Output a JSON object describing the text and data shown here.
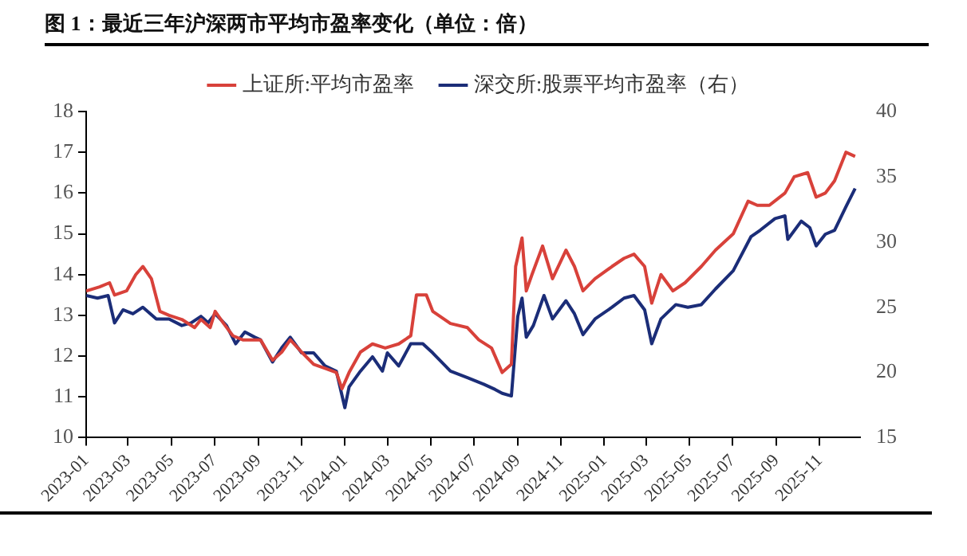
{
  "chart_data": {
    "type": "line",
    "title": "图 1：最近三年沪深两市平均市盈率变化（单位：倍）",
    "legend": "top",
    "xlim": [
      "2023-01-01",
      "2025-12-28"
    ],
    "xticks": [
      "2023-01",
      "2023-03",
      "2023-05",
      "2023-07",
      "2023-09",
      "2023-11",
      "2024-01",
      "2024-03",
      "2024-05",
      "2024-07",
      "2024-09",
      "2024-11",
      "2025-01",
      "2025-03",
      "2025-05",
      "2025-07",
      "2025-09",
      "2025-11"
    ],
    "ylim": [
      10,
      18
    ],
    "yticks": [
      10,
      11,
      12,
      13,
      14,
      15,
      16,
      17,
      18
    ],
    "y2lim": [
      15,
      40
    ],
    "y2ticks": [
      15,
      20,
      25,
      30,
      35,
      40
    ],
    "series": [
      {
        "name": "上证所:平均市盈率",
        "color": "#d8413a",
        "x": [
          "2023-01-01",
          "2023-01-20",
          "2023-02-03",
          "2023-02-10",
          "2023-02-27",
          "2023-03-12",
          "2023-03-22",
          "2023-04-03",
          "2023-04-15",
          "2023-04-28",
          "2023-05-16",
          "2023-06-03",
          "2023-06-12",
          "2023-06-25",
          "2023-07-02",
          "2023-07-14",
          "2023-07-27",
          "2023-08-10",
          "2023-08-27",
          "2023-09-04",
          "2023-09-21",
          "2023-10-04",
          "2023-10-16",
          "2023-11-01",
          "2023-11-18",
          "2023-12-04",
          "2023-12-20",
          "2023-12-28",
          "2024-01-07",
          "2024-01-23",
          "2024-02-09",
          "2024-02-27",
          "2024-03-17",
          "2024-04-03",
          "2024-04-11",
          "2024-04-25",
          "2024-05-04",
          "2024-05-29",
          "2024-06-22",
          "2024-07-08",
          "2024-07-26",
          "2024-08-10",
          "2024-08-23",
          "2024-08-29",
          "2024-09-07",
          "2024-09-13",
          "2024-09-21",
          "2024-10-06",
          "2024-10-20",
          "2024-11-08",
          "2024-11-20",
          "2024-12-02",
          "2024-12-19",
          "2025-01-12",
          "2025-01-29",
          "2025-02-12",
          "2025-02-27",
          "2025-03-09",
          "2025-03-22",
          "2025-04-08",
          "2025-04-25",
          "2025-05-18",
          "2025-06-07",
          "2025-07-02",
          "2025-07-23",
          "2025-08-05",
          "2025-08-22",
          "2025-09-13",
          "2025-09-26",
          "2025-10-15",
          "2025-10-27",
          "2025-11-09",
          "2025-11-22",
          "2025-12-08",
          "2025-12-21"
        ],
        "values": [
          13.6,
          13.7,
          13.8,
          13.5,
          13.6,
          14.0,
          14.2,
          13.9,
          13.1,
          13.0,
          12.9,
          12.7,
          12.9,
          12.7,
          13.1,
          12.8,
          12.5,
          12.4,
          12.4,
          12.4,
          11.9,
          12.1,
          12.4,
          12.1,
          11.8,
          11.7,
          11.6,
          11.2,
          11.6,
          12.1,
          12.3,
          12.2,
          12.3,
          12.5,
          13.5,
          13.5,
          13.1,
          12.8,
          12.7,
          12.4,
          12.2,
          11.6,
          11.8,
          14.2,
          14.9,
          13.6,
          14.0,
          14.7,
          13.9,
          14.6,
          14.2,
          13.6,
          13.9,
          14.2,
          14.4,
          14.5,
          14.2,
          13.3,
          14.0,
          13.6,
          13.8,
          14.2,
          14.6,
          15.0,
          15.8,
          15.7,
          15.7,
          16.0,
          16.4,
          16.5,
          15.9,
          16.0,
          16.3,
          17.0,
          16.9
        ]
      },
      {
        "name": "深交所:股票平均市盈率（右）",
        "color": "#1b2d78",
        "axis": "y2",
        "x": [
          "2023-01-01",
          "2023-01-17",
          "2023-02-01",
          "2023-02-10",
          "2023-02-22",
          "2023-03-08",
          "2023-03-22",
          "2023-04-10",
          "2023-04-28",
          "2023-05-16",
          "2023-05-29",
          "2023-06-12",
          "2023-06-22",
          "2023-07-02",
          "2023-07-18",
          "2023-07-31",
          "2023-08-13",
          "2023-08-27",
          "2023-09-04",
          "2023-09-21",
          "2023-10-04",
          "2023-10-16",
          "2023-11-01",
          "2023-11-18",
          "2023-12-04",
          "2023-12-20",
          "2024-01-01",
          "2024-01-07",
          "2024-01-23",
          "2024-02-09",
          "2024-02-23",
          "2024-03-01",
          "2024-03-17",
          "2024-04-03",
          "2024-04-20",
          "2024-05-04",
          "2024-05-29",
          "2024-06-22",
          "2024-07-15",
          "2024-07-31",
          "2024-08-10",
          "2024-08-23",
          "2024-09-01",
          "2024-09-07",
          "2024-09-13",
          "2024-09-23",
          "2024-10-08",
          "2024-10-20",
          "2024-11-08",
          "2024-11-20",
          "2024-12-02",
          "2024-12-19",
          "2025-01-12",
          "2025-01-29",
          "2025-02-12",
          "2025-02-27",
          "2025-03-09",
          "2025-03-22",
          "2025-04-12",
          "2025-04-29",
          "2025-05-18",
          "2025-06-07",
          "2025-07-02",
          "2025-07-27",
          "2025-08-09",
          "2025-08-30",
          "2025-09-13",
          "2025-09-17",
          "2025-10-06",
          "2025-10-18",
          "2025-10-27",
          "2025-11-09",
          "2025-11-22",
          "2025-12-08",
          "2025-12-21"
        ],
        "values": [
          25.9,
          25.7,
          25.9,
          23.8,
          24.8,
          24.5,
          25.0,
          24.1,
          24.1,
          23.6,
          23.8,
          24.3,
          23.8,
          24.5,
          23.6,
          22.2,
          23.1,
          22.7,
          22.5,
          20.8,
          21.9,
          22.7,
          21.5,
          21.5,
          20.5,
          20.1,
          17.3,
          18.9,
          20.1,
          21.2,
          20.1,
          21.5,
          20.5,
          22.2,
          22.2,
          21.5,
          20.1,
          19.6,
          19.1,
          18.7,
          18.4,
          18.2,
          24.3,
          25.7,
          22.7,
          23.6,
          25.9,
          24.1,
          25.5,
          24.5,
          22.9,
          24.1,
          25.0,
          25.7,
          25.9,
          24.8,
          22.2,
          24.1,
          25.2,
          25.0,
          25.2,
          26.4,
          27.8,
          30.4,
          30.9,
          31.8,
          32.0,
          30.2,
          31.6,
          31.1,
          29.7,
          30.6,
          30.9,
          32.7,
          34.1
        ]
      }
    ]
  }
}
